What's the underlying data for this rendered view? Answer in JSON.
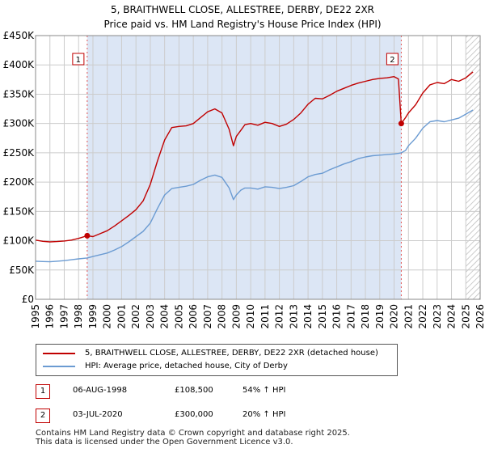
{
  "title_line1": "5, BRAITHWELL CLOSE, ALLESTREE, DERBY, DE22 2XR",
  "title_line2": "Price paid vs. HM Land Registry's House Price Index (HPI)",
  "colors": {
    "price": "#c00000",
    "hpi": "#6b9bd2",
    "shade": "#dce6f5",
    "grid": "#cccccc",
    "vline": "#e05555"
  },
  "chart_data": {
    "type": "line",
    "xlim": [
      1995,
      2026
    ],
    "ylim": [
      0,
      450000
    ],
    "y_ticks": [
      0,
      50000,
      100000,
      150000,
      200000,
      250000,
      300000,
      350000,
      400000,
      450000
    ],
    "y_tick_labels": [
      "£0",
      "£50K",
      "£100K",
      "£150K",
      "£200K",
      "£250K",
      "£300K",
      "£350K",
      "£400K",
      "£450K"
    ],
    "x_ticks": [
      1995,
      1996,
      1997,
      1998,
      1999,
      2000,
      2001,
      2002,
      2003,
      2004,
      2005,
      2006,
      2007,
      2008,
      2009,
      2010,
      2011,
      2012,
      2013,
      2014,
      2015,
      2016,
      2017,
      2018,
      2019,
      2020,
      2021,
      2022,
      2023,
      2024,
      2025,
      2026
    ],
    "x_tick_labels": [
      "1995",
      "1996",
      "1997",
      "1998",
      "1999",
      "2000",
      "2001",
      "2002",
      "2003",
      "2004",
      "2005",
      "2006",
      "2007",
      "2008",
      "2009",
      "2010",
      "2011",
      "2012",
      "2013",
      "2014",
      "2015",
      "2016",
      "2017",
      "2018",
      "2019",
      "2020",
      "2021",
      "2022",
      "2023",
      "2024",
      "2025",
      "2026"
    ],
    "shaded_ranges": [
      [
        1998.6,
        2020.5
      ]
    ],
    "hatched_from": 2025.0,
    "markers": [
      {
        "label": "1",
        "x": 1998.6,
        "y": 108500
      },
      {
        "label": "2",
        "x": 2020.5,
        "y": 300000
      }
    ],
    "series": [
      {
        "name": "5, BRAITHWELL CLOSE, ALLESTREE, DERBY, DE22 2XR (detached house)",
        "x": [
          1995.0,
          1995.5,
          1996.0,
          1996.5,
          1997.0,
          1997.5,
          1998.0,
          1998.6,
          1999.0,
          1999.5,
          2000.0,
          2000.5,
          2001.0,
          2001.5,
          2002.0,
          2002.5,
          2003.0,
          2003.5,
          2004.0,
          2004.5,
          2005.0,
          2005.5,
          2006.0,
          2006.5,
          2007.0,
          2007.5,
          2008.0,
          2008.5,
          2008.8,
          2009.0,
          2009.3,
          2009.6,
          2010.0,
          2010.5,
          2011.0,
          2011.5,
          2012.0,
          2012.5,
          2013.0,
          2013.5,
          2014.0,
          2014.5,
          2015.0,
          2015.5,
          2016.0,
          2016.5,
          2017.0,
          2017.5,
          2018.0,
          2018.5,
          2019.0,
          2019.5,
          2020.0,
          2020.3,
          2020.5,
          2020.8,
          2021.0,
          2021.5,
          2022.0,
          2022.5,
          2023.0,
          2023.5,
          2024.0,
          2024.5,
          2025.0,
          2025.5
        ],
        "values": [
          101000,
          99000,
          98000,
          98500,
          99500,
          101000,
          104000,
          108500,
          107000,
          112000,
          117000,
          125000,
          134000,
          143000,
          153000,
          168000,
          196000,
          236000,
          272000,
          293000,
          295000,
          296000,
          300000,
          310000,
          320000,
          325000,
          318000,
          290000,
          262000,
          278000,
          288000,
          298000,
          300000,
          297000,
          302000,
          300000,
          295000,
          299000,
          307000,
          318000,
          333000,
          343000,
          342000,
          348000,
          355000,
          360000,
          365000,
          369000,
          372000,
          375000,
          377000,
          378000,
          380000,
          376000,
          300000,
          310000,
          318000,
          332000,
          352000,
          366000,
          370000,
          368000,
          375000,
          372000,
          378000,
          388000
        ]
      },
      {
        "name": "HPI: Average price, detached house, City of Derby",
        "x": [
          1995.0,
          1995.5,
          1996.0,
          1996.5,
          1997.0,
          1997.5,
          1998.0,
          1998.6,
          1999.0,
          1999.5,
          2000.0,
          2000.5,
          2001.0,
          2001.5,
          2002.0,
          2002.5,
          2003.0,
          2003.5,
          2004.0,
          2004.5,
          2005.0,
          2005.5,
          2006.0,
          2006.5,
          2007.0,
          2007.5,
          2008.0,
          2008.5,
          2008.8,
          2009.0,
          2009.3,
          2009.6,
          2010.0,
          2010.5,
          2011.0,
          2011.5,
          2012.0,
          2012.5,
          2013.0,
          2013.5,
          2014.0,
          2014.5,
          2015.0,
          2015.5,
          2016.0,
          2016.5,
          2017.0,
          2017.5,
          2018.0,
          2018.5,
          2019.0,
          2019.5,
          2020.0,
          2020.3,
          2020.5,
          2020.8,
          2021.0,
          2021.5,
          2022.0,
          2022.5,
          2023.0,
          2023.5,
          2024.0,
          2024.5,
          2025.0,
          2025.5
        ],
        "values": [
          65000,
          64500,
          64000,
          65000,
          66000,
          67500,
          69000,
          70500,
          73000,
          76000,
          79000,
          84000,
          90000,
          98000,
          107000,
          116000,
          130000,
          155000,
          178000,
          189000,
          191000,
          193000,
          196000,
          203000,
          209000,
          212000,
          208000,
          190000,
          170000,
          178000,
          186000,
          190000,
          190000,
          188000,
          192000,
          191000,
          189000,
          191000,
          194000,
          201000,
          209000,
          213000,
          215000,
          221000,
          226000,
          231000,
          235000,
          240000,
          243000,
          245000,
          246000,
          247000,
          248000,
          249000,
          250000,
          254000,
          262000,
          275000,
          292000,
          303000,
          305000,
          303000,
          306000,
          309000,
          316000,
          323000
        ]
      }
    ]
  },
  "legend": {
    "price_label": "5, BRAITHWELL CLOSE, ALLESTREE, DERBY, DE22 2XR (detached house)",
    "hpi_label": "HPI: Average price, detached house, City of Derby"
  },
  "sales": [
    {
      "num": "1",
      "date": "06-AUG-1998",
      "price": "£108,500",
      "hpi": "54% ↑ HPI"
    },
    {
      "num": "2",
      "date": "03-JUL-2020",
      "price": "£300,000",
      "hpi": "20% ↑ HPI"
    }
  ],
  "footer_line1": "Contains HM Land Registry data © Crown copyright and database right 2025.",
  "footer_line2": "This data is licensed under the Open Government Licence v3.0."
}
